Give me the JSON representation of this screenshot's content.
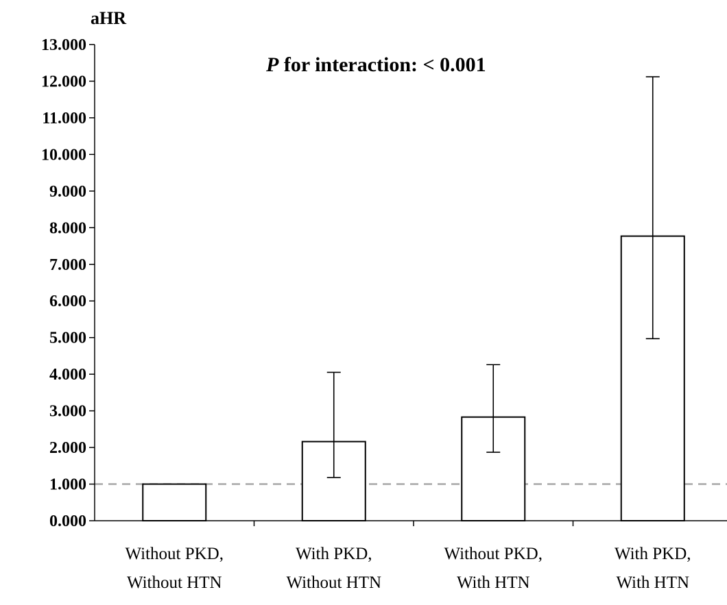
{
  "chart_data": {
    "type": "bar",
    "title": "",
    "ylabel": "aHR",
    "xlabel": "",
    "annotation": {
      "italic_part": "P",
      "rest": " for interaction: < 0.001"
    },
    "categories": [
      [
        "Without PKD,",
        "Without HTN"
      ],
      [
        "With PKD,",
        "Without HTN"
      ],
      [
        "Without PKD,",
        "With HTN"
      ],
      [
        "With PKD,",
        "With HTN"
      ]
    ],
    "values": [
      1.0,
      2.16,
      2.83,
      7.77
    ],
    "error_low": [
      1.0,
      1.18,
      1.87,
      4.97
    ],
    "error_high": [
      1.0,
      4.05,
      4.26,
      12.12
    ],
    "ylim": [
      0,
      13
    ],
    "yticks": [
      "0.000",
      "1.000",
      "2.000",
      "3.000",
      "4.000",
      "5.000",
      "6.000",
      "7.000",
      "8.000",
      "9.000",
      "10.000",
      "11.000",
      "12.000",
      "13.000"
    ],
    "reference_line": 1.0,
    "colors": {
      "bar_fill": "#ffffff",
      "bar_stroke": "#000000",
      "reference_line": "#a6a6a6"
    },
    "grid": false,
    "legend": "none"
  }
}
